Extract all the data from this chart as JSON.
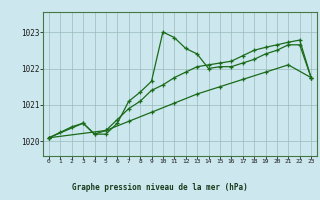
{
  "title": "Graphe pression niveau de la mer (hPa)",
  "bg_color": "#cce8ee",
  "label_bg": "#cce8ee",
  "grid_color": "#99bbbb",
  "line_color": "#1a6b1a",
  "xlim": [
    -0.5,
    23.5
  ],
  "ylim": [
    1019.6,
    1023.55
  ],
  "yticks": [
    1020,
    1021,
    1022,
    1023
  ],
  "ytick_labels": [
    "1020",
    "1021",
    "1022",
    "1023"
  ],
  "xtick_labels": [
    "0",
    "1",
    "2",
    "3",
    "4",
    "5",
    "6",
    "7",
    "8",
    "9",
    "10",
    "11",
    "12",
    "13",
    "14",
    "15",
    "16",
    "17",
    "18",
    "19",
    "20",
    "21",
    "22",
    "23"
  ],
  "series1_x": [
    0,
    1,
    2,
    3,
    4,
    5,
    6,
    7,
    8,
    9,
    10,
    11,
    12,
    13,
    14,
    15,
    16,
    17,
    18,
    19,
    20,
    21,
    22,
    23
  ],
  "series1_y": [
    1020.1,
    1020.25,
    1020.4,
    1020.5,
    1020.2,
    1020.2,
    1020.5,
    1021.1,
    1021.35,
    1021.65,
    1023.0,
    1022.85,
    1022.55,
    1022.4,
    1022.0,
    1022.05,
    1022.05,
    1022.15,
    1022.25,
    1022.4,
    1022.5,
    1022.65,
    1022.65,
    1021.75
  ],
  "series2_x": [
    0,
    3,
    4,
    5,
    6,
    7,
    8,
    9,
    10,
    11,
    12,
    13,
    14,
    15,
    16,
    17,
    18,
    19,
    20,
    21,
    22,
    23
  ],
  "series2_y": [
    1020.1,
    1020.5,
    1020.2,
    1020.3,
    1020.6,
    1020.9,
    1021.1,
    1021.4,
    1021.55,
    1021.75,
    1021.9,
    1022.05,
    1022.1,
    1022.15,
    1022.2,
    1022.35,
    1022.5,
    1022.58,
    1022.65,
    1022.72,
    1022.78,
    1021.75
  ],
  "series3_x": [
    0,
    5,
    7,
    9,
    11,
    13,
    15,
    17,
    19,
    21,
    23
  ],
  "series3_y": [
    1020.1,
    1020.3,
    1020.55,
    1020.8,
    1021.05,
    1021.3,
    1021.5,
    1021.7,
    1021.9,
    1022.1,
    1021.75
  ]
}
